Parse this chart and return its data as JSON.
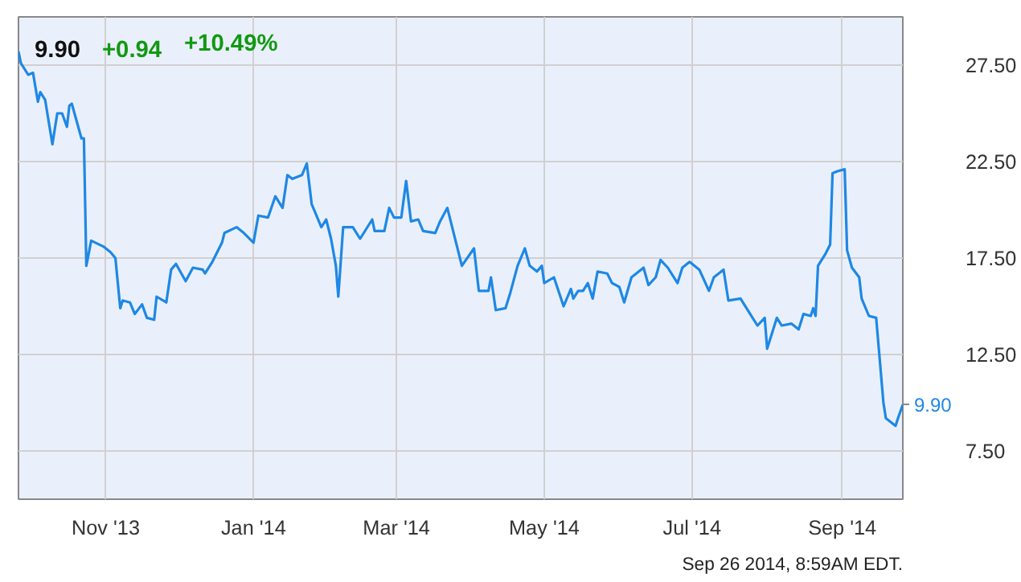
{
  "chart_data": {
    "type": "line",
    "title": "9.90",
    "subtitle": "+0.94 +10.49%",
    "x": [
      "2013-09-26",
      "2013-09-27",
      "2013-09-30",
      "2013-10-02",
      "2013-10-04",
      "2013-10-05",
      "2013-10-07",
      "2013-10-10",
      "2013-10-12",
      "2013-10-14",
      "2013-10-16",
      "2013-10-17",
      "2013-10-18",
      "2013-10-22",
      "2013-10-23",
      "2013-10-24",
      "2013-10-26",
      "2013-10-31",
      "2013-11-03",
      "2013-11-05",
      "2013-11-07",
      "2013-11-08",
      "2013-11-11",
      "2013-11-13",
      "2013-11-16",
      "2013-11-18",
      "2013-11-21",
      "2013-11-22",
      "2013-11-26",
      "2013-11-28",
      "2013-11-30",
      "2013-12-04",
      "2013-12-07",
      "2013-12-11",
      "2013-12-12",
      "2013-12-15",
      "2013-12-19",
      "2013-12-20",
      "2013-12-25",
      "2013-12-28",
      "2014-01-01",
      "2014-01-03",
      "2014-01-07",
      "2014-01-10",
      "2014-01-13",
      "2014-01-15",
      "2014-01-17",
      "2014-01-21",
      "2014-01-23",
      "2014-01-25",
      "2014-01-29",
      "2014-01-31",
      "2014-02-02",
      "2014-02-04",
      "2014-02-05",
      "2014-02-07",
      "2014-02-11",
      "2014-02-14",
      "2014-02-19",
      "2014-02-20",
      "2014-02-24",
      "2014-02-26",
      "2014-02-28",
      "2014-03-03",
      "2014-03-05",
      "2014-03-07",
      "2014-03-10",
      "2014-03-12",
      "2014-03-17",
      "2014-03-19",
      "2014-03-22",
      "2014-03-26",
      "2014-03-28",
      "2014-04-02",
      "2014-04-04",
      "2014-04-08",
      "2014-04-09",
      "2014-04-11",
      "2014-04-15",
      "2014-04-17",
      "2014-04-20",
      "2014-04-23",
      "2014-04-25",
      "2014-04-28",
      "2014-04-30",
      "2014-05-01",
      "2014-05-05",
      "2014-05-09",
      "2014-05-12",
      "2014-05-13",
      "2014-05-15",
      "2014-05-17",
      "2014-05-19",
      "2014-05-21",
      "2014-05-23",
      "2014-05-27",
      "2014-05-29",
      "2014-06-01",
      "2014-06-03",
      "2014-06-06",
      "2014-06-11",
      "2014-06-13",
      "2014-06-16",
      "2014-06-18",
      "2014-06-21",
      "2014-06-25",
      "2014-06-27",
      "2014-06-30",
      "2014-07-04",
      "2014-07-08",
      "2014-07-10",
      "2014-07-14",
      "2014-07-16",
      "2014-07-21",
      "2014-07-25",
      "2014-07-28",
      "2014-07-31",
      "2014-08-01",
      "2014-08-05",
      "2014-08-07",
      "2014-08-11",
      "2014-08-14",
      "2014-08-16",
      "2014-08-19",
      "2014-08-20",
      "2014-08-21",
      "2014-08-22",
      "2014-08-25",
      "2014-08-27",
      "2014-08-28",
      "2014-08-30",
      "2014-09-02",
      "2014-09-03",
      "2014-09-05",
      "2014-09-08",
      "2014-09-09",
      "2014-09-12",
      "2014-09-15",
      "2014-09-18",
      "2014-09-19",
      "2014-09-23",
      "2014-09-24",
      "2014-09-26"
    ],
    "series": [
      {
        "color": "#1e88e5",
        "values": [
          28.2,
          27.6,
          27.0,
          27.1,
          25.6,
          26.1,
          25.7,
          23.4,
          25.0,
          25.0,
          24.3,
          25.4,
          25.5,
          23.7,
          23.7,
          17.1,
          18.4,
          18.1,
          17.8,
          17.5,
          14.9,
          15.3,
          15.2,
          14.6,
          15.1,
          14.4,
          14.3,
          15.5,
          15.2,
          16.9,
          17.2,
          16.3,
          17.0,
          16.9,
          16.7,
          17.3,
          18.3,
          18.8,
          19.1,
          18.8,
          18.3,
          19.7,
          19.6,
          20.7,
          20.1,
          21.8,
          21.6,
          21.8,
          22.4,
          20.3,
          19.1,
          19.5,
          18.5,
          17.1,
          15.5,
          19.1,
          19.1,
          18.5,
          19.5,
          18.9,
          18.9,
          20.1,
          19.6,
          19.6,
          21.5,
          19.4,
          19.5,
          18.9,
          18.8,
          19.4,
          20.1,
          18.1,
          17.1,
          18.0,
          15.8,
          15.8,
          16.5,
          14.8,
          14.9,
          15.7,
          17.1,
          18.0,
          17.1,
          16.8,
          17.1,
          16.2,
          16.5,
          15.0,
          15.9,
          15.4,
          15.8,
          15.8,
          16.2,
          15.4,
          16.8,
          16.7,
          16.2,
          16.0,
          15.2,
          16.5,
          17.0,
          16.1,
          16.5,
          17.4,
          17.0,
          16.2,
          17.0,
          17.3,
          16.9,
          15.8,
          16.5,
          16.9,
          15.3,
          15.4,
          14.6,
          14.0,
          14.4,
          12.8,
          14.4,
          14.0,
          14.1,
          13.8,
          14.6,
          14.5,
          14.9,
          14.5,
          17.1,
          17.7,
          18.2,
          21.9,
          22.0,
          22.1,
          17.9,
          17.0,
          16.5,
          15.4,
          14.5,
          14.4,
          10.0,
          9.2,
          8.8,
          9.2,
          9.9
        ]
      }
    ],
    "xlim": [
      "2013-09-26",
      "2014-09-26"
    ],
    "xticks": [
      {
        "value": "2013-11-01",
        "label": "Nov '13"
      },
      {
        "value": "2014-01-01",
        "label": "Jan '14"
      },
      {
        "value": "2014-03-01",
        "label": "Mar '14"
      },
      {
        "value": "2014-05-01",
        "label": "May '14"
      },
      {
        "value": "2014-07-01",
        "label": "Jul '14"
      },
      {
        "value": "2014-09-01",
        "label": "Sep '14"
      }
    ],
    "ylim": [
      5,
      30
    ],
    "yticks": [
      {
        "value": 7.5,
        "label": "7.50"
      },
      {
        "value": 12.5,
        "label": "12.50"
      },
      {
        "value": 17.5,
        "label": "17.50"
      },
      {
        "value": 22.5,
        "label": "22.50"
      },
      {
        "value": 27.5,
        "label": "27.50"
      }
    ],
    "grid": true,
    "annotations": [
      {
        "text": "9.90",
        "x": "2014-09-26",
        "y": 9.9
      },
      "Sep 26 2014, 8:59AM EDT."
    ]
  }
}
